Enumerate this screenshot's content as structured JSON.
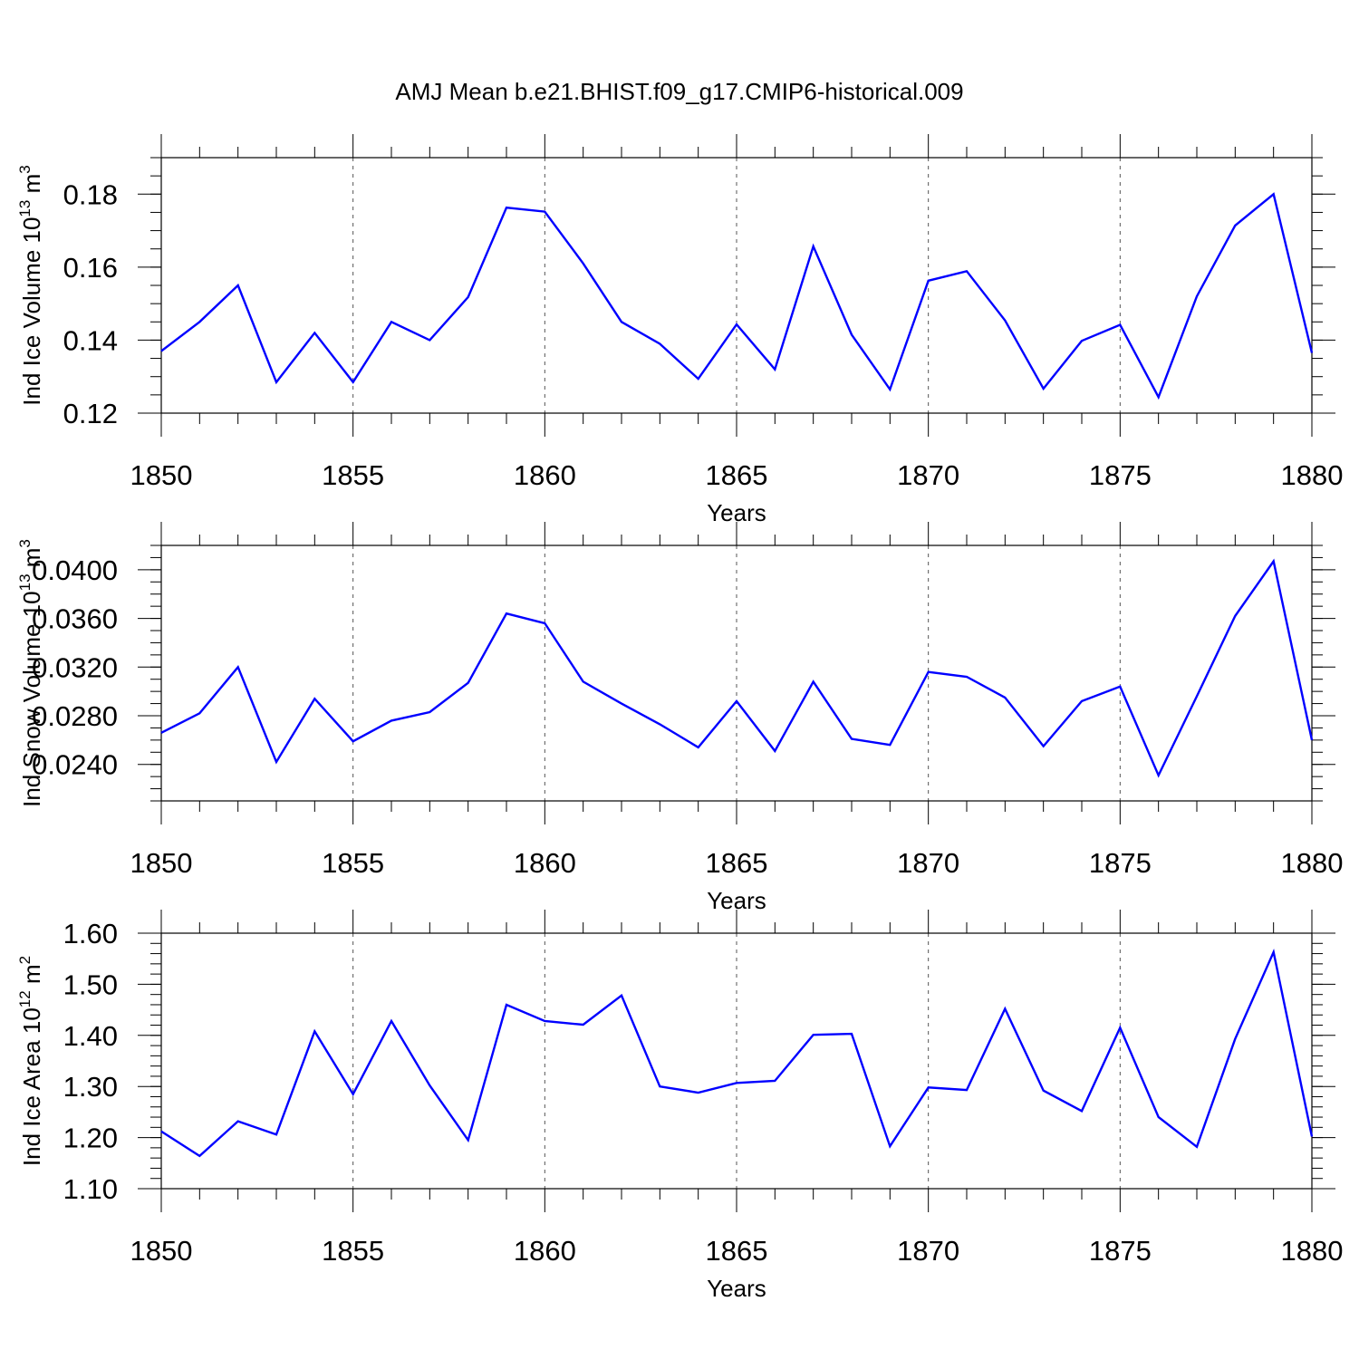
{
  "figure": {
    "title": "AMJ Mean b.e21.BHIST.f09_g17.CMIP6-historical.009",
    "line_color": "#0000ff",
    "grid_color": "#555555"
  },
  "chart_data": [
    {
      "type": "line",
      "title": "AMJ Mean b.e21.BHIST.f09_g17.CMIP6-historical.009",
      "xlabel": "Years",
      "ylabel": "Ind Ice Volume 10",
      "ylabel_exp": "13",
      "ylabel_unit": " m",
      "ylabel_unit_exp": "3",
      "xlim": [
        1850,
        1880
      ],
      "ylim": [
        0.12,
        0.19
      ],
      "x_ticks": [
        1850,
        1855,
        1860,
        1865,
        1870,
        1875,
        1880
      ],
      "x_tick_labels": [
        "1850",
        "1855",
        "1860",
        "1865",
        "1870",
        "1875",
        "1880"
      ],
      "y_ticks": [
        0.12,
        0.14,
        0.16,
        0.18
      ],
      "y_tick_labels": [
        "0.12",
        "0.14",
        "0.16",
        "0.18"
      ],
      "y_minor_step": 0.005,
      "grid": "vertical dashed at major x ticks",
      "x": [
        1850,
        1851,
        1852,
        1853,
        1854,
        1855,
        1856,
        1857,
        1858,
        1859,
        1860,
        1861,
        1862,
        1863,
        1864,
        1865,
        1866,
        1867,
        1868,
        1869,
        1870,
        1871,
        1872,
        1873,
        1874,
        1875,
        1876,
        1877,
        1878,
        1879,
        1880
      ],
      "series": [
        {
          "values": [
            0.137,
            0.145,
            0.155,
            0.1285,
            0.142,
            0.1285,
            0.145,
            0.14,
            0.1518,
            0.1763,
            0.1752,
            0.161,
            0.145,
            0.139,
            0.1294,
            0.1443,
            0.132,
            0.1657,
            0.1415,
            0.1265,
            0.1563,
            0.1589,
            0.1454,
            0.1267,
            0.1398,
            0.1442,
            0.1244,
            0.152,
            0.1714,
            0.18,
            0.1365
          ]
        }
      ]
    },
    {
      "type": "line",
      "xlabel": "Years",
      "ylabel": "Ind Snow Volume 10",
      "ylabel_exp": "13",
      "ylabel_unit": " m",
      "ylabel_unit_exp": "3",
      "xlim": [
        1850,
        1880
      ],
      "ylim": [
        0.021,
        0.042
      ],
      "x_ticks": [
        1850,
        1855,
        1860,
        1865,
        1870,
        1875,
        1880
      ],
      "x_tick_labels": [
        "1850",
        "1855",
        "1860",
        "1865",
        "1870",
        "1875",
        "1880"
      ],
      "y_ticks": [
        0.024,
        0.028,
        0.032,
        0.036,
        0.04
      ],
      "y_tick_labels": [
        "0.0240",
        "0.0280",
        "0.0320",
        "0.0360",
        "0.0400"
      ],
      "y_minor_step": 0.001,
      "grid": "vertical dashed at major x ticks",
      "x": [
        1850,
        1851,
        1852,
        1853,
        1854,
        1855,
        1856,
        1857,
        1858,
        1859,
        1860,
        1861,
        1862,
        1863,
        1864,
        1865,
        1866,
        1867,
        1868,
        1869,
        1870,
        1871,
        1872,
        1873,
        1874,
        1875,
        1876,
        1877,
        1878,
        1879,
        1880
      ],
      "series": [
        {
          "values": [
            0.0266,
            0.0282,
            0.032,
            0.0242,
            0.0294,
            0.0259,
            0.0276,
            0.0283,
            0.0307,
            0.0364,
            0.0356,
            0.0308,
            0.029,
            0.0273,
            0.0254,
            0.0292,
            0.0251,
            0.0308,
            0.0261,
            0.0256,
            0.0316,
            0.0312,
            0.0295,
            0.0255,
            0.0292,
            0.0304,
            0.0231,
            0.0296,
            0.0362,
            0.0407,
            0.026
          ]
        }
      ]
    },
    {
      "type": "line",
      "xlabel": "Years",
      "ylabel": "Ind Ice Area 10",
      "ylabel_exp": "12",
      "ylabel_unit": " m",
      "ylabel_unit_exp": "2",
      "xlim": [
        1850,
        1880
      ],
      "ylim": [
        1.1,
        1.6
      ],
      "x_ticks": [
        1850,
        1855,
        1860,
        1865,
        1870,
        1875,
        1880
      ],
      "x_tick_labels": [
        "1850",
        "1855",
        "1860",
        "1865",
        "1870",
        "1875",
        "1880"
      ],
      "y_ticks": [
        1.1,
        1.2,
        1.3,
        1.4,
        1.5,
        1.6
      ],
      "y_tick_labels": [
        "1.10",
        "1.20",
        "1.30",
        "1.40",
        "1.50",
        "1.60"
      ],
      "y_minor_step": 0.02,
      "grid": "vertical dashed at major x ticks",
      "x": [
        1850,
        1851,
        1852,
        1853,
        1854,
        1855,
        1856,
        1857,
        1858,
        1859,
        1860,
        1861,
        1862,
        1863,
        1864,
        1865,
        1866,
        1867,
        1868,
        1869,
        1870,
        1871,
        1872,
        1873,
        1874,
        1875,
        1876,
        1877,
        1878,
        1879,
        1880
      ],
      "series": [
        {
          "values": [
            1.212,
            1.164,
            1.232,
            1.206,
            1.408,
            1.285,
            1.428,
            1.302,
            1.195,
            1.46,
            1.428,
            1.421,
            1.478,
            1.3,
            1.288,
            1.307,
            1.311,
            1.401,
            1.403,
            1.183,
            1.298,
            1.293,
            1.452,
            1.292,
            1.252,
            1.415,
            1.24,
            1.182,
            1.393,
            1.563,
            1.202
          ]
        }
      ]
    }
  ]
}
